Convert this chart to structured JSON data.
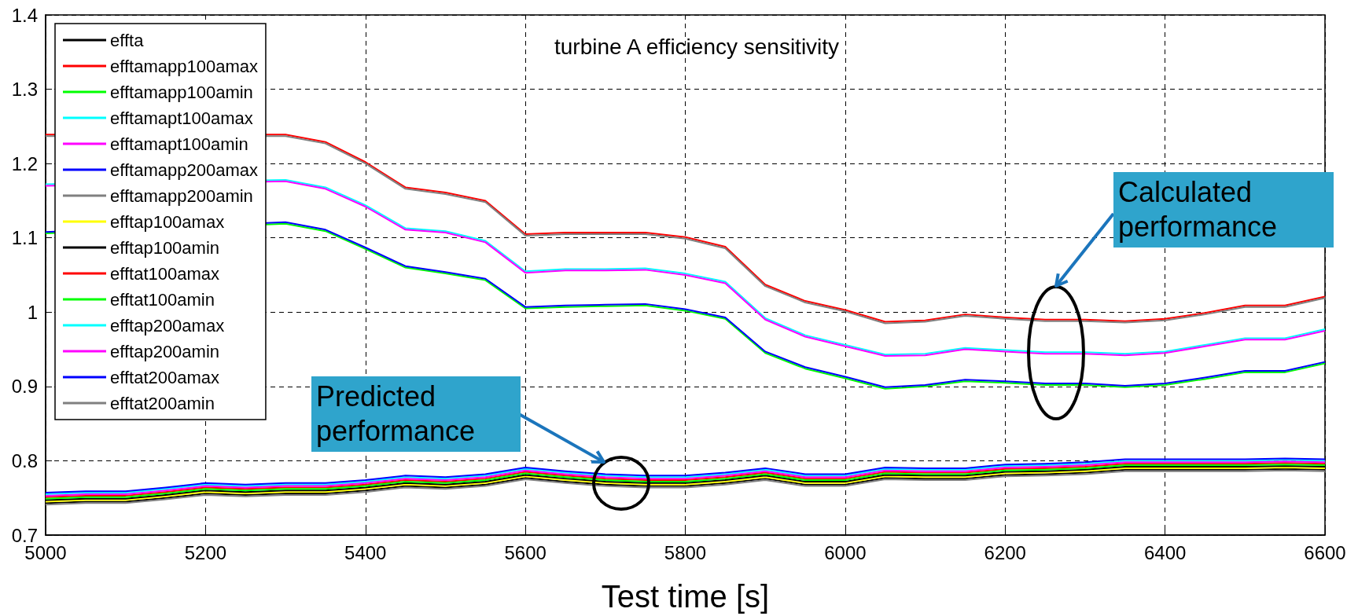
{
  "chart_data": {
    "type": "line",
    "title": "turbine A efficiency sensitivity",
    "xlabel": "Test time [s]",
    "x": [
      5000,
      5050,
      5100,
      5150,
      5200,
      5250,
      5300,
      5350,
      5400,
      5450,
      5500,
      5550,
      5600,
      5650,
      5700,
      5750,
      5800,
      5850,
      5900,
      5950,
      6000,
      6050,
      6100,
      6150,
      6200,
      6250,
      6300,
      6350,
      6400,
      6450,
      6500,
      6550,
      6600
    ],
    "xlim": [
      5000,
      6600
    ],
    "xticks": [
      5000,
      5200,
      5400,
      5600,
      5800,
      6000,
      6200,
      6400,
      6600
    ],
    "ylim": [
      0.7,
      1.4
    ],
    "yticks": [
      0.7,
      0.8,
      0.9,
      1,
      1.1,
      1.2,
      1.3,
      1.4
    ],
    "grid": true,
    "legend": "top left",
    "marker": "none",
    "line_style": "solid",
    "series": [
      {
        "name": "effta",
        "color": "#000000",
        "values": [
          0.743,
          0.745,
          0.745,
          0.75,
          0.756,
          0.754,
          0.756,
          0.756,
          0.76,
          0.766,
          0.764,
          0.768,
          0.777,
          0.772,
          0.768,
          0.766,
          0.766,
          0.77,
          0.776,
          0.768,
          0.768,
          0.777,
          0.776,
          0.776,
          0.781,
          0.782,
          0.784,
          0.788,
          0.788,
          0.788,
          0.788,
          0.789,
          0.788
        ]
      },
      {
        "name": "efftamapp100amax",
        "color": "#ff0000",
        "values": [
          1.239,
          null,
          null,
          null,
          null,
          null,
          1.239,
          1.229,
          1.202,
          1.168,
          1.161,
          1.15,
          1.105,
          1.107,
          1.107,
          1.107,
          1.101,
          1.088,
          1.037,
          1.015,
          1.003,
          0.987,
          0.989,
          0.997,
          0.993,
          0.99,
          0.99,
          0.988,
          0.991,
          0.999,
          1.009,
          1.009,
          1.021
        ]
      },
      {
        "name": "efftamapp100amin",
        "color": "#00ff00",
        "values": [
          1.106,
          null,
          null,
          null,
          null,
          null,
          1.119,
          1.109,
          1.085,
          1.06,
          1.052,
          1.043,
          1.005,
          1.007,
          1.008,
          1.009,
          1.002,
          0.991,
          0.945,
          0.924,
          0.911,
          0.897,
          0.9,
          0.907,
          0.905,
          0.902,
          0.902,
          0.899,
          0.902,
          0.91,
          0.919,
          0.919,
          0.931
        ]
      },
      {
        "name": "efftamapt100amax",
        "color": "#00ffff",
        "values": [
          1.172,
          null,
          null,
          null,
          null,
          null,
          1.178,
          1.168,
          1.144,
          1.113,
          1.109,
          1.096,
          1.055,
          1.058,
          1.058,
          1.059,
          1.052,
          1.041,
          0.992,
          0.969,
          0.956,
          0.943,
          0.944,
          0.952,
          0.949,
          0.946,
          0.946,
          0.944,
          0.947,
          0.956,
          0.965,
          0.965,
          0.977
        ]
      },
      {
        "name": "efftamapt100amin",
        "color": "#ff00ff",
        "values": [
          1.17,
          null,
          null,
          null,
          null,
          null,
          1.176,
          1.166,
          1.142,
          1.111,
          1.107,
          1.094,
          1.053,
          1.056,
          1.056,
          1.057,
          1.05,
          1.039,
          0.99,
          0.967,
          0.954,
          0.941,
          0.942,
          0.95,
          0.947,
          0.944,
          0.944,
          0.942,
          0.945,
          0.954,
          0.963,
          0.963,
          0.975
        ]
      },
      {
        "name": "efftamapp200amax",
        "color": "#0000ff",
        "values": [
          1.108,
          null,
          null,
          null,
          null,
          null,
          1.121,
          1.111,
          1.087,
          1.062,
          1.054,
          1.045,
          1.007,
          1.009,
          1.01,
          1.011,
          1.004,
          0.993,
          0.947,
          0.926,
          0.913,
          0.899,
          0.902,
          0.909,
          0.907,
          0.904,
          0.904,
          0.901,
          0.904,
          0.912,
          0.921,
          0.921,
          0.933
        ]
      },
      {
        "name": "efftamapp200amin",
        "color": "#808080",
        "values": [
          1.237,
          null,
          null,
          null,
          null,
          null,
          1.237,
          1.227,
          1.2,
          1.166,
          1.159,
          1.148,
          1.103,
          1.105,
          1.105,
          1.105,
          1.099,
          1.086,
          1.035,
          1.013,
          1.001,
          0.985,
          0.987,
          0.995,
          0.991,
          0.988,
          0.988,
          0.986,
          0.989,
          0.997,
          1.007,
          1.007,
          1.019
        ]
      },
      {
        "name": "efftap100amax",
        "color": "#ffff00",
        "values": [
          0.745,
          0.747,
          0.747,
          0.752,
          0.758,
          0.756,
          0.758,
          0.758,
          0.762,
          0.768,
          0.766,
          0.77,
          0.779,
          0.774,
          0.77,
          0.768,
          0.768,
          0.772,
          0.778,
          0.77,
          0.77,
          0.779,
          0.778,
          0.778,
          0.783,
          0.784,
          0.786,
          0.79,
          0.79,
          0.79,
          0.79,
          0.791,
          0.79
        ]
      },
      {
        "name": "efftap100amin",
        "color": "#000000",
        "values": [
          0.747,
          0.749,
          0.749,
          0.754,
          0.76,
          0.758,
          0.76,
          0.76,
          0.764,
          0.77,
          0.768,
          0.772,
          0.781,
          0.776,
          0.772,
          0.77,
          0.77,
          0.774,
          0.78,
          0.772,
          0.772,
          0.781,
          0.78,
          0.78,
          0.785,
          0.786,
          0.788,
          0.792,
          0.792,
          0.792,
          0.792,
          0.793,
          0.792
        ]
      },
      {
        "name": "efftat100amax",
        "color": "#ff0000",
        "values": [
          0.751,
          0.753,
          0.753,
          0.758,
          0.764,
          0.762,
          0.764,
          0.764,
          0.768,
          0.774,
          0.772,
          0.776,
          0.785,
          0.78,
          0.776,
          0.774,
          0.774,
          0.778,
          0.784,
          0.776,
          0.776,
          0.785,
          0.784,
          0.784,
          0.789,
          0.79,
          0.792,
          0.796,
          0.796,
          0.796,
          0.796,
          0.797,
          0.796
        ]
      },
      {
        "name": "efftat100amin",
        "color": "#00ff00",
        "values": [
          0.749,
          0.751,
          0.751,
          0.756,
          0.762,
          0.76,
          0.762,
          0.762,
          0.766,
          0.772,
          0.77,
          0.774,
          0.783,
          0.778,
          0.774,
          0.772,
          0.772,
          0.776,
          0.782,
          0.774,
          0.774,
          0.783,
          0.782,
          0.782,
          0.787,
          0.788,
          0.79,
          0.794,
          0.794,
          0.794,
          0.794,
          0.795,
          0.794
        ]
      },
      {
        "name": "efftap200amax",
        "color": "#00ffff",
        "values": [
          0.755,
          0.757,
          0.757,
          0.762,
          0.768,
          0.766,
          0.768,
          0.768,
          0.772,
          0.778,
          0.776,
          0.78,
          0.789,
          0.784,
          0.78,
          0.778,
          0.778,
          0.782,
          0.788,
          0.78,
          0.78,
          0.789,
          0.788,
          0.788,
          0.793,
          0.794,
          0.796,
          0.8,
          0.8,
          0.8,
          0.8,
          0.801,
          0.8
        ]
      },
      {
        "name": "efftap200amin",
        "color": "#ff00ff",
        "values": [
          0.753,
          0.755,
          0.755,
          0.76,
          0.766,
          0.764,
          0.766,
          0.766,
          0.77,
          0.776,
          0.774,
          0.778,
          0.787,
          0.782,
          0.778,
          0.776,
          0.776,
          0.78,
          0.786,
          0.778,
          0.778,
          0.787,
          0.786,
          0.786,
          0.791,
          0.792,
          0.794,
          0.798,
          0.798,
          0.798,
          0.798,
          0.799,
          0.798
        ]
      },
      {
        "name": "efftat200amax",
        "color": "#0000ff",
        "values": [
          0.757,
          0.759,
          0.759,
          0.764,
          0.77,
          0.768,
          0.77,
          0.77,
          0.774,
          0.78,
          0.778,
          0.782,
          0.791,
          0.786,
          0.782,
          0.78,
          0.78,
          0.784,
          0.79,
          0.782,
          0.782,
          0.791,
          0.79,
          0.79,
          0.795,
          0.796,
          0.798,
          0.802,
          0.802,
          0.802,
          0.802,
          0.803,
          0.802
        ]
      },
      {
        "name": "efftat200amin",
        "color": "#808080",
        "values": [
          0.741,
          0.743,
          0.743,
          0.748,
          0.754,
          0.752,
          0.754,
          0.754,
          0.758,
          0.764,
          0.762,
          0.766,
          0.775,
          0.77,
          0.766,
          0.764,
          0.764,
          0.768,
          0.774,
          0.766,
          0.766,
          0.775,
          0.774,
          0.774,
          0.779,
          0.78,
          0.782,
          0.786,
          0.786,
          0.786,
          0.786,
          0.787,
          0.786
        ]
      }
    ],
    "annotations": [
      "Predicted performance",
      "Calculated performance"
    ]
  }
}
